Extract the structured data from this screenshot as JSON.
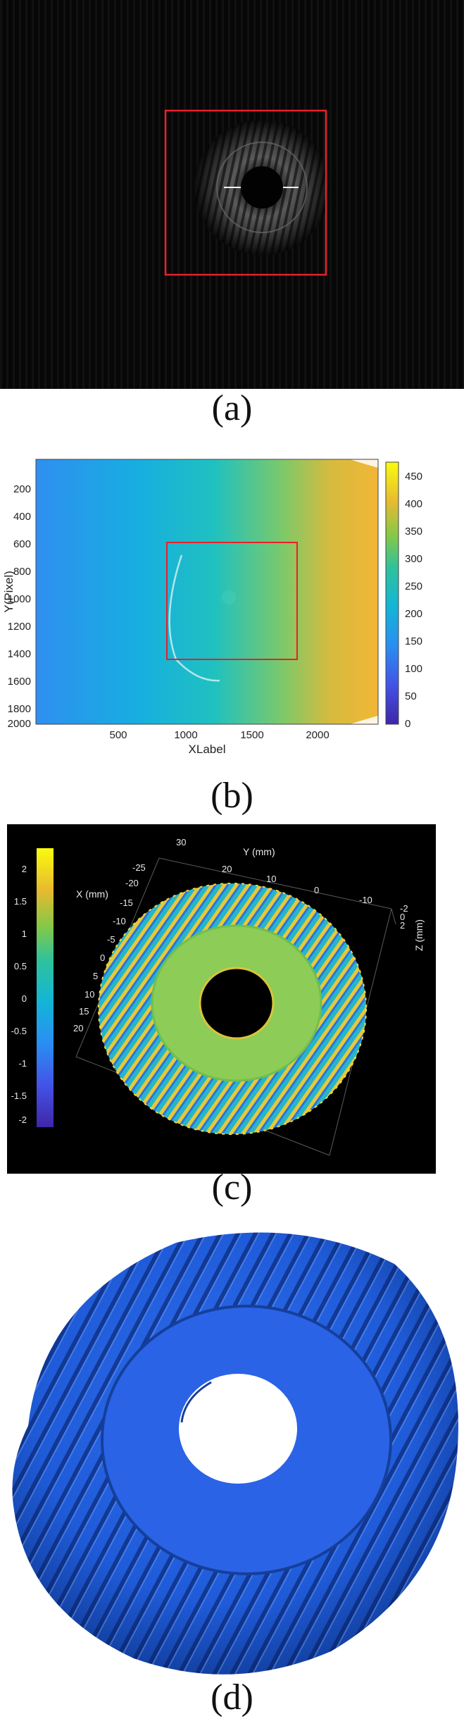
{
  "captions": {
    "a": "(a)",
    "b": "(b)",
    "c": "(c)",
    "d": "(d)"
  },
  "panel_b": {
    "x_label": "XLabel",
    "y_label": "Y(Pixel)",
    "x_ticks": [
      "500",
      "1000",
      "1500",
      "2000"
    ],
    "y_ticks": [
      "200",
      "400",
      "600",
      "800",
      "1000",
      "1200",
      "1400",
      "1600",
      "1800",
      "2000"
    ],
    "colorbar_ticks": [
      "450",
      "400",
      "350",
      "300",
      "250",
      "200",
      "150",
      "100",
      "50",
      "0"
    ]
  },
  "panel_c": {
    "x_axis_label": "X (mm)",
    "y_axis_label": "Y (mm)",
    "z_axis_label": "Z (mm)",
    "x_ticks": [
      "-25",
      "-20",
      "-15",
      "-10",
      "-5",
      "0",
      "5",
      "10",
      "15",
      "20"
    ],
    "y_ticks": [
      "30",
      "20",
      "10",
      "0",
      "-10"
    ],
    "z_ticks": [
      "-2",
      "0",
      "2"
    ],
    "colorbar_ticks": [
      "2",
      "1.5",
      "1",
      "0.5",
      "0",
      "-0.5",
      "-1",
      "-1.5",
      "-2"
    ]
  },
  "colors": {
    "highlight_box": "#e8202a",
    "mesh_blue": "#1f5bd8",
    "parula_low": "#3e26a8",
    "parula_mid": "#22c0c0",
    "parula_high": "#f9fb0e"
  }
}
